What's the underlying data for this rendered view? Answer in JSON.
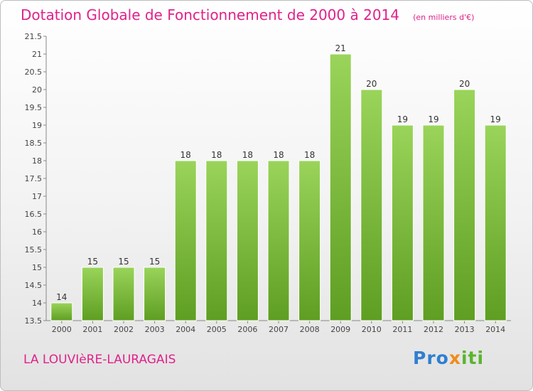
{
  "title": "Dotation Globale de Fonctionnement de 2000 à 2014",
  "subtitle": "(en milliers d'€)",
  "town": "LA LOUVIèRE-LAURAGAIS",
  "logo": {
    "p1": "Pro",
    "p2": "x",
    "p3": "iti"
  },
  "colors": {
    "bar": "#7cc13a",
    "bar_light": "#9ad45a",
    "bar_dark": "#5e9e22",
    "title": "#e0218a"
  },
  "chart_data": {
    "type": "bar",
    "categories": [
      "2000",
      "2001",
      "2002",
      "2003",
      "2004",
      "2005",
      "2006",
      "2007",
      "2008",
      "2009",
      "2010",
      "2011",
      "2012",
      "2013",
      "2014"
    ],
    "values": [
      14,
      15,
      15,
      15,
      18,
      18,
      18,
      18,
      18,
      21,
      20,
      19,
      19,
      20,
      19
    ],
    "title": "Dotation Globale de Fonctionnement de 2000 à 2014",
    "subtitle": "(en milliers d'€)",
    "ylim": [
      13.5,
      21.5
    ],
    "yticks": [
      13.5,
      14,
      14.5,
      15,
      15.5,
      16,
      16.5,
      17,
      17.5,
      18,
      18.5,
      19,
      19.5,
      20,
      20.5,
      21,
      21.5
    ],
    "grid": false,
    "legend": "none"
  }
}
